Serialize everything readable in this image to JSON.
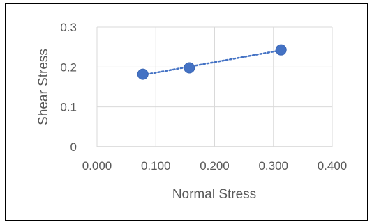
{
  "chart_data": {
    "type": "scatter",
    "title": "",
    "xlabel": "Normal Stress",
    "ylabel": "Shear Stress",
    "xlim": [
      0,
      0.4
    ],
    "ylim": [
      0,
      0.3
    ],
    "x_ticks": [
      "0.000",
      "0.100",
      "0.200",
      "0.300",
      "0.400"
    ],
    "y_ticks": [
      "0",
      "0.1",
      "0.2",
      "0.3"
    ],
    "grid": true,
    "legend": "none",
    "trendline": "linear",
    "series": [
      {
        "x": [
          0.078,
          0.157,
          0.313
        ],
        "y": [
          0.182,
          0.198,
          0.243
        ],
        "color": "#4472c4"
      }
    ]
  }
}
